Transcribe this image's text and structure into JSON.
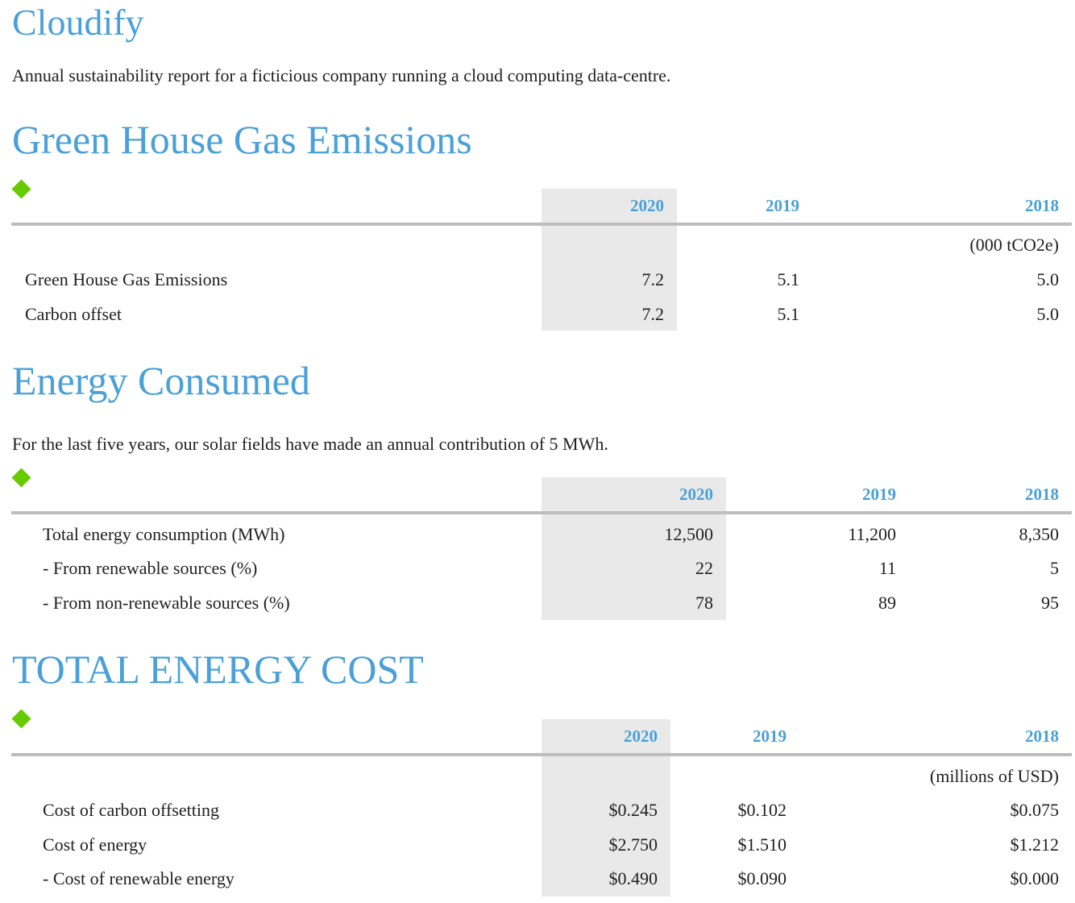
{
  "header": {
    "title": "Cloudify",
    "subtitle": "Annual sustainability report for a ficticious company running a cloud computing data-centre."
  },
  "ghg": {
    "title": "Green House Gas Emissions",
    "years": [
      "2020",
      "2019",
      "2018"
    ],
    "unit": "(000 tCO2e)",
    "rows": [
      {
        "label": "Green House Gas Emissions",
        "values": [
          "7.2",
          "5.1",
          "5.0"
        ]
      },
      {
        "label": "Carbon offset",
        "values": [
          "7.2",
          "5.1",
          "5.0"
        ]
      }
    ]
  },
  "energy": {
    "title": "Energy Consumed",
    "note": "For the last five years, our solar fields have made an annual contribution of 5 MWh.",
    "years": [
      "2020",
      "2019",
      "2018"
    ],
    "rows": [
      {
        "label": "Total energy consumption (MWh)",
        "values": [
          "12,500",
          "11,200",
          "8,350"
        ]
      },
      {
        "label": "- From renewable sources (%)",
        "values": [
          "22",
          "11",
          "5"
        ]
      },
      {
        "label": "- From non-renewable sources (%)",
        "values": [
          "78",
          "89",
          "95"
        ]
      }
    ]
  },
  "cost": {
    "title": "TOTAL ENERGY COST",
    "years": [
      "2020",
      "2019",
      "2018"
    ],
    "unit": "(millions of USD)",
    "rows": [
      {
        "label": "Cost of carbon offsetting",
        "values": [
          "$0.245",
          "$0.102",
          "$0.075"
        ]
      },
      {
        "label": "Cost of energy",
        "values": [
          "$2.750",
          "$1.510",
          "$1.212"
        ]
      },
      {
        "label": "- Cost of renewable energy",
        "values": [
          "$0.490",
          "$0.090",
          "$0.000"
        ]
      }
    ]
  },
  "colors": {
    "heading": "#4aa0d8",
    "bullet": "#66cc00",
    "highlight": "#e9e9e9",
    "rule": "#bdbdbd"
  },
  "icons": {
    "bullet": "diamond-bullet-icon"
  }
}
